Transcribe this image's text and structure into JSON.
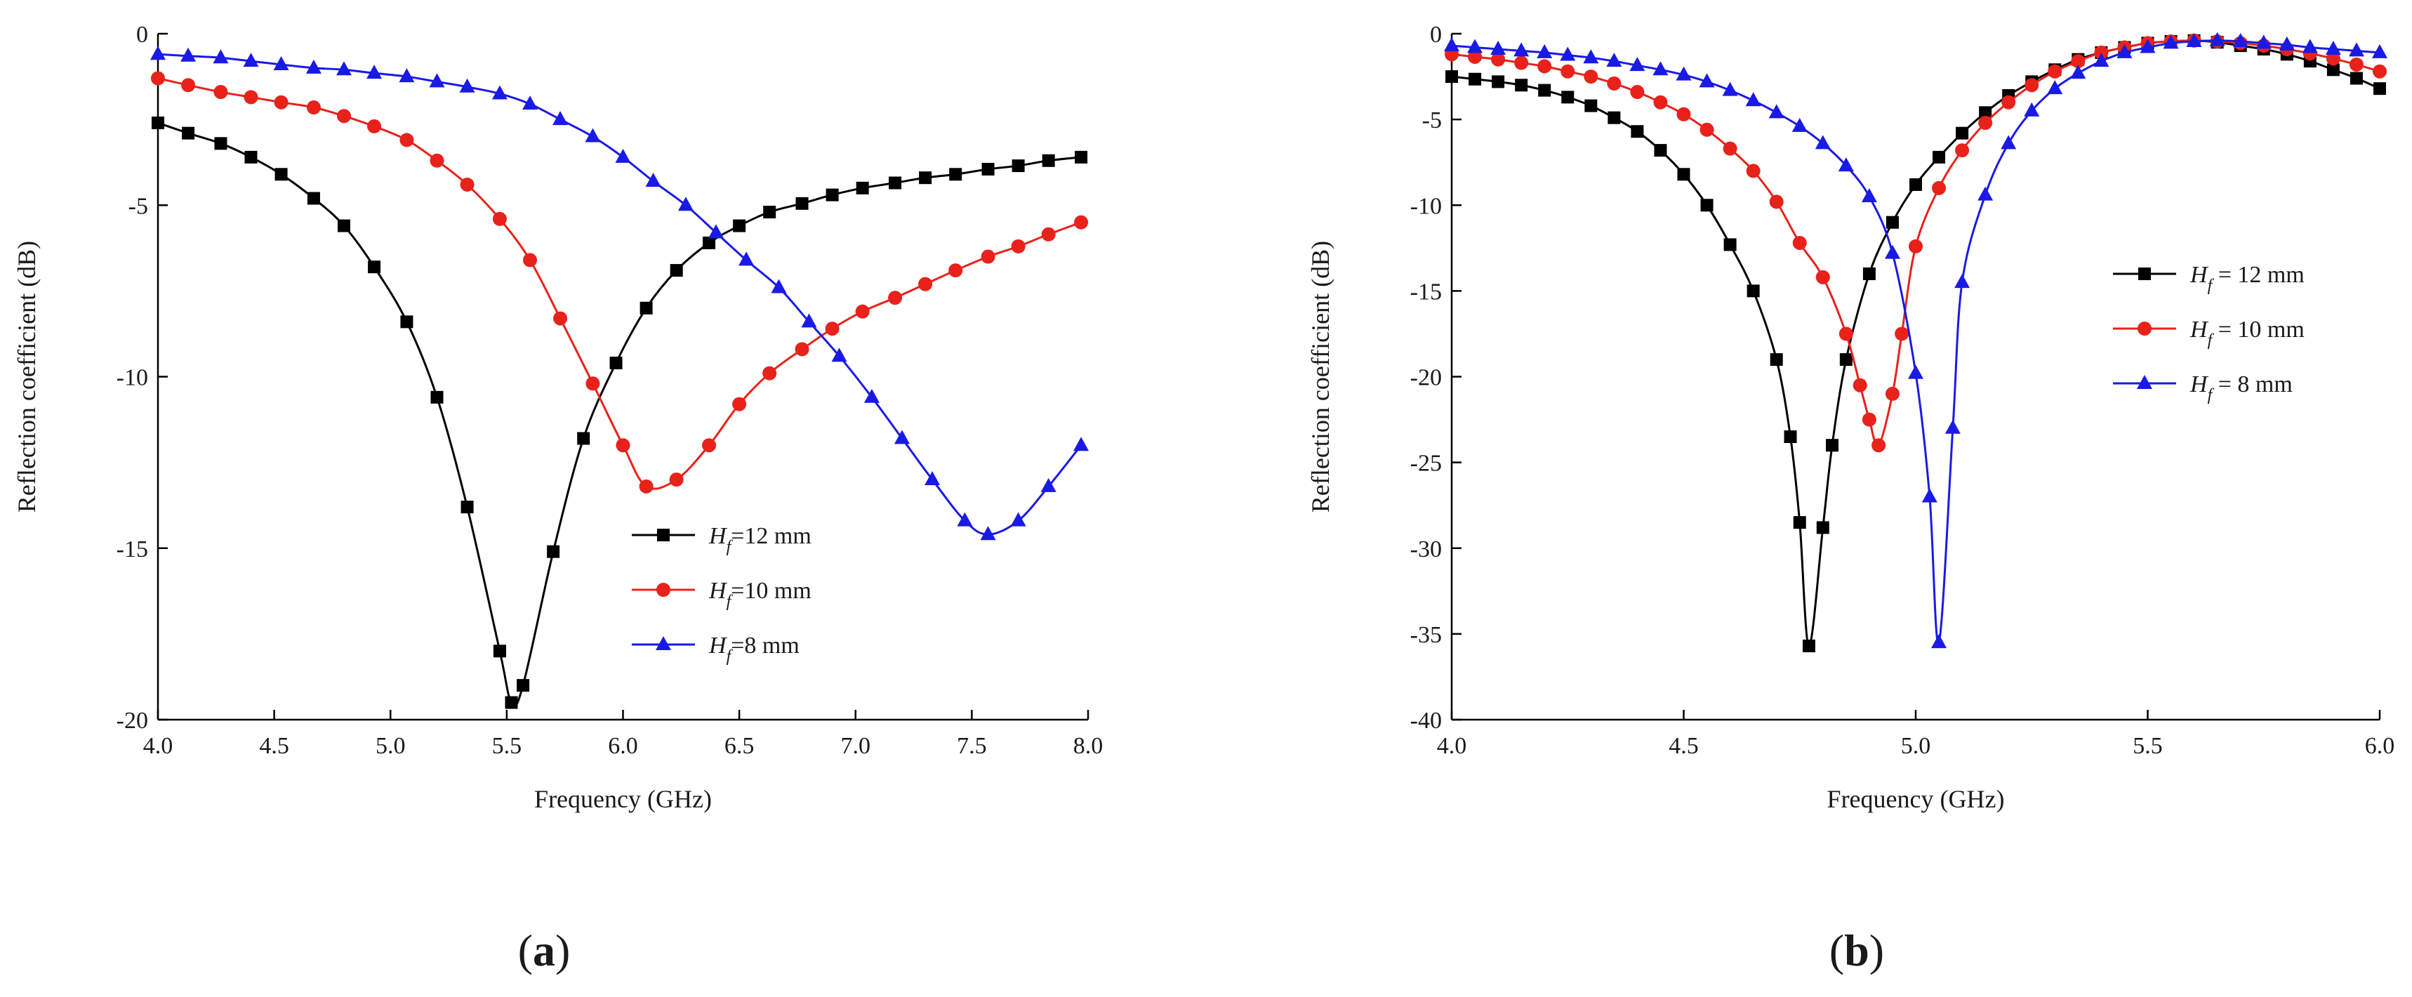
{
  "chart_data": [
    {
      "type": "line",
      "panel_label": "a",
      "xlabel": "Frequency (GHz)",
      "ylabel": "Reflection coefficient (dB)",
      "xlim": [
        4.0,
        8.0
      ],
      "ylim": [
        -20,
        0
      ],
      "xticks": [
        "4.0",
        "4.5",
        "5.0",
        "5.5",
        "6.0",
        "6.5",
        "7.0",
        "7.5",
        "8.0"
      ],
      "yticks": [
        "0",
        "-5",
        "-10",
        "-15",
        "-20"
      ],
      "legend_position": "lower-right",
      "series": [
        {
          "name_symbol": "H",
          "name_sub": "f",
          "name_rest": "=12 mm",
          "color": "#000000",
          "marker": "square",
          "x": [
            4.0,
            4.13,
            4.27,
            4.4,
            4.53,
            4.67,
            4.8,
            4.93,
            5.07,
            5.2,
            5.33,
            5.47,
            5.52,
            5.57,
            5.7,
            5.83,
            5.97,
            6.1,
            6.23,
            6.37,
            6.5,
            6.63,
            6.77,
            6.9,
            7.03,
            7.17,
            7.3,
            7.43,
            7.57,
            7.7,
            7.83,
            7.97
          ],
          "y": [
            -2.6,
            -2.9,
            -3.2,
            -3.6,
            -4.1,
            -4.8,
            -5.6,
            -6.8,
            -8.4,
            -10.6,
            -13.8,
            -18.0,
            -19.5,
            -19.0,
            -15.1,
            -11.8,
            -9.6,
            -8.0,
            -6.9,
            -6.1,
            -5.6,
            -5.2,
            -4.95,
            -4.7,
            -4.5,
            -4.35,
            -4.2,
            -4.1,
            -3.95,
            -3.85,
            -3.7,
            -3.6
          ]
        },
        {
          "name_symbol": "H",
          "name_sub": "f",
          "name_rest": "=10 mm",
          "color": "#e8221b",
          "marker": "circle",
          "x": [
            4.0,
            4.13,
            4.27,
            4.4,
            4.53,
            4.67,
            4.8,
            4.93,
            5.07,
            5.2,
            5.33,
            5.47,
            5.6,
            5.73,
            5.87,
            6.0,
            6.1,
            6.23,
            6.37,
            6.5,
            6.63,
            6.77,
            6.9,
            7.03,
            7.17,
            7.3,
            7.43,
            7.57,
            7.7,
            7.83,
            7.97
          ],
          "y": [
            -1.3,
            -1.5,
            -1.7,
            -1.85,
            -2.0,
            -2.15,
            -2.4,
            -2.7,
            -3.1,
            -3.7,
            -4.4,
            -5.4,
            -6.6,
            -8.3,
            -10.2,
            -12.0,
            -13.2,
            -13.0,
            -12.0,
            -10.8,
            -9.9,
            -9.2,
            -8.6,
            -8.1,
            -7.7,
            -7.3,
            -6.9,
            -6.5,
            -6.2,
            -5.85,
            -5.5
          ]
        },
        {
          "name_symbol": "H",
          "name_sub": "f",
          "name_rest": "=8 mm",
          "color": "#1a1ae6",
          "marker": "triangle",
          "x": [
            4.0,
            4.13,
            4.27,
            4.4,
            4.53,
            4.67,
            4.8,
            4.93,
            5.07,
            5.2,
            5.33,
            5.47,
            5.6,
            5.73,
            5.87,
            6.0,
            6.13,
            6.27,
            6.4,
            6.53,
            6.67,
            6.8,
            6.93,
            7.07,
            7.2,
            7.33,
            7.47,
            7.57,
            7.7,
            7.83,
            7.97
          ],
          "y": [
            -0.6,
            -0.65,
            -0.7,
            -0.8,
            -0.9,
            -1.0,
            -1.05,
            -1.15,
            -1.25,
            -1.4,
            -1.55,
            -1.75,
            -2.05,
            -2.5,
            -3.0,
            -3.6,
            -4.3,
            -5.0,
            -5.8,
            -6.6,
            -7.4,
            -8.4,
            -9.4,
            -10.6,
            -11.8,
            -13.0,
            -14.2,
            -14.6,
            -14.2,
            -13.2,
            -12.0
          ]
        }
      ]
    },
    {
      "type": "line",
      "panel_label": "b",
      "xlabel": "Frequency (GHz)",
      "ylabel": "Reflection coefficient (dB)",
      "xlim": [
        4.0,
        6.0
      ],
      "ylim": [
        -40,
        0
      ],
      "xticks": [
        "4.0",
        "4.5",
        "5.0",
        "5.5",
        "6.0"
      ],
      "yticks": [
        "0",
        "-5",
        "-10",
        "-15",
        "-20",
        "-25",
        "-30",
        "-35",
        "-40"
      ],
      "legend_position": "right",
      "series": [
        {
          "name_symbol": "H",
          "name_sub": "f",
          "name_rest": " = 12 mm",
          "color": "#000000",
          "marker": "square",
          "x": [
            4.0,
            4.05,
            4.1,
            4.15,
            4.2,
            4.25,
            4.3,
            4.35,
            4.4,
            4.45,
            4.5,
            4.55,
            4.6,
            4.65,
            4.7,
            4.73,
            4.75,
            4.77,
            4.8,
            4.82,
            4.85,
            4.9,
            4.95,
            5.0,
            5.05,
            5.1,
            5.15,
            5.2,
            5.25,
            5.3,
            5.35,
            5.4,
            5.45,
            5.5,
            5.55,
            5.6,
            5.65,
            5.7,
            5.75,
            5.8,
            5.85,
            5.9,
            5.95,
            6.0
          ],
          "y": [
            -2.5,
            -2.65,
            -2.8,
            -3.0,
            -3.3,
            -3.7,
            -4.2,
            -4.9,
            -5.7,
            -6.8,
            -8.2,
            -10.0,
            -12.3,
            -15.0,
            -19.0,
            -23.5,
            -28.5,
            -35.7,
            -28.8,
            -24.0,
            -19.0,
            -14.0,
            -11.0,
            -8.8,
            -7.2,
            -5.8,
            -4.6,
            -3.6,
            -2.8,
            -2.1,
            -1.5,
            -1.1,
            -0.8,
            -0.55,
            -0.45,
            -0.4,
            -0.5,
            -0.7,
            -0.9,
            -1.2,
            -1.6,
            -2.1,
            -2.6,
            -3.2
          ]
        },
        {
          "name_symbol": "H",
          "name_sub": "f",
          "name_rest": " = 10 mm",
          "color": "#e8221b",
          "marker": "circle",
          "x": [
            4.0,
            4.05,
            4.1,
            4.15,
            4.2,
            4.25,
            4.3,
            4.35,
            4.4,
            4.45,
            4.5,
            4.55,
            4.6,
            4.65,
            4.7,
            4.75,
            4.8,
            4.85,
            4.88,
            4.9,
            4.92,
            4.95,
            4.97,
            5.0,
            5.05,
            5.1,
            5.15,
            5.2,
            5.25,
            5.3,
            5.35,
            5.4,
            5.45,
            5.5,
            5.55,
            5.6,
            5.65,
            5.7,
            5.75,
            5.8,
            5.85,
            5.9,
            5.95,
            6.0
          ],
          "y": [
            -1.2,
            -1.35,
            -1.5,
            -1.7,
            -1.9,
            -2.2,
            -2.5,
            -2.9,
            -3.4,
            -4.0,
            -4.7,
            -5.6,
            -6.7,
            -8.0,
            -9.8,
            -12.2,
            -14.2,
            -17.5,
            -20.5,
            -22.5,
            -24.0,
            -21.0,
            -17.5,
            -12.4,
            -9.0,
            -6.8,
            -5.2,
            -4.0,
            -3.0,
            -2.2,
            -1.6,
            -1.1,
            -0.8,
            -0.55,
            -0.45,
            -0.4,
            -0.45,
            -0.55,
            -0.7,
            -0.9,
            -1.15,
            -1.45,
            -1.8,
            -2.2
          ]
        },
        {
          "name_symbol": "H",
          "name_sub": "f",
          "name_rest": " = 8 mm",
          "color": "#1a1ae6",
          "marker": "triangle",
          "x": [
            4.0,
            4.05,
            4.1,
            4.15,
            4.2,
            4.25,
            4.3,
            4.35,
            4.4,
            4.45,
            4.5,
            4.55,
            4.6,
            4.65,
            4.7,
            4.75,
            4.8,
            4.85,
            4.9,
            4.95,
            5.0,
            5.03,
            5.05,
            5.08,
            5.1,
            5.15,
            5.2,
            5.25,
            5.3,
            5.35,
            5.4,
            5.45,
            5.5,
            5.55,
            5.6,
            5.65,
            5.7,
            5.75,
            5.8,
            5.85,
            5.9,
            5.95,
            6.0
          ],
          "y": [
            -0.7,
            -0.8,
            -0.9,
            -1.0,
            -1.1,
            -1.25,
            -1.4,
            -1.6,
            -1.85,
            -2.1,
            -2.4,
            -2.8,
            -3.3,
            -3.9,
            -4.6,
            -5.4,
            -6.4,
            -7.7,
            -9.5,
            -12.8,
            -19.8,
            -27.0,
            -35.5,
            -23.0,
            -14.5,
            -9.4,
            -6.4,
            -4.5,
            -3.2,
            -2.3,
            -1.6,
            -1.1,
            -0.8,
            -0.55,
            -0.45,
            -0.4,
            -0.45,
            -0.55,
            -0.65,
            -0.8,
            -0.9,
            -1.0,
            -1.1
          ]
        }
      ]
    }
  ]
}
